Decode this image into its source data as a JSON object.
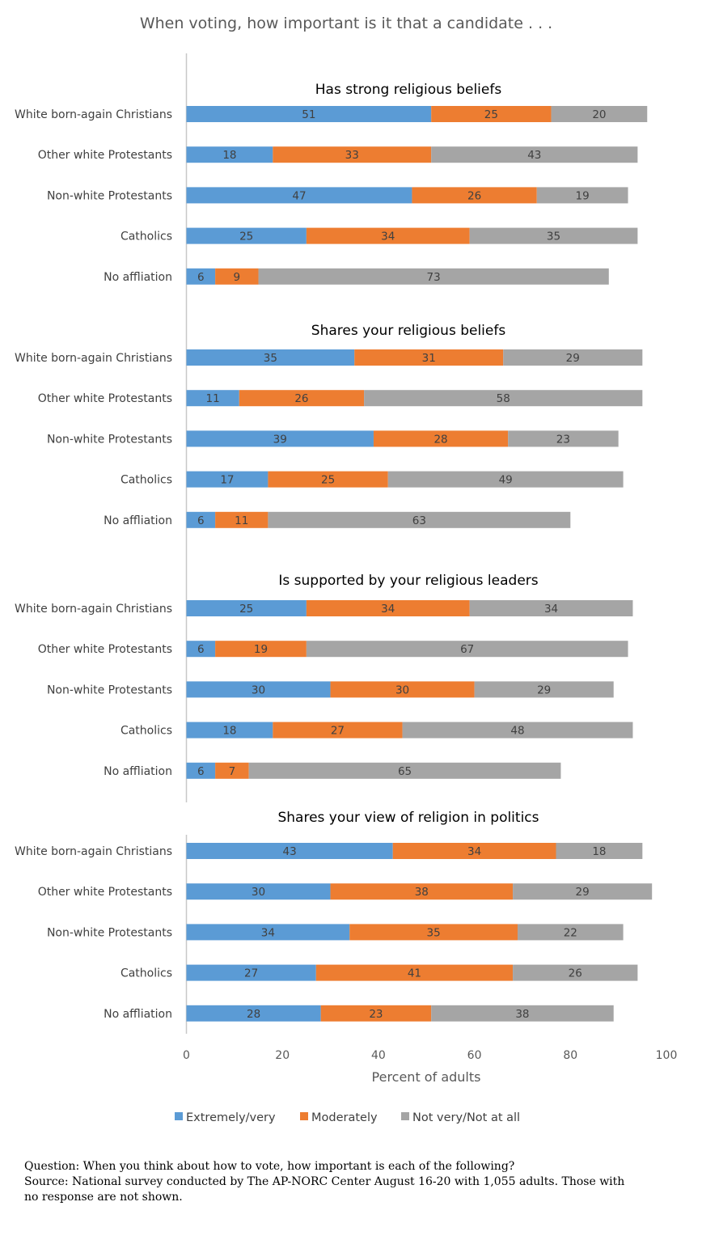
{
  "chart_data": {
    "type": "bar",
    "orientation": "horizontal",
    "stacked": true,
    "title": "When voting, how important is it that a candidate . . .",
    "xlabel": "Percent of adults",
    "xlim": [
      0,
      100
    ],
    "xticks": [
      0,
      20,
      40,
      60,
      80,
      100
    ],
    "grid": false,
    "legend_position": "bottom",
    "series": [
      {
        "name": "Extremely/very",
        "color": "#5b9bd5"
      },
      {
        "name": "Moderately",
        "color": "#ed7d31"
      },
      {
        "name": "Not very/Not at all",
        "color": "#a5a5a5"
      }
    ],
    "panels": [
      {
        "title": "Has strong religious beliefs",
        "categories": [
          "White born-again Christians",
          "Other white Protestants",
          "Non-white Protestants",
          "Catholics",
          "No affliation"
        ],
        "values": [
          [
            51,
            25,
            20
          ],
          [
            18,
            33,
            43
          ],
          [
            47,
            26,
            19
          ],
          [
            25,
            34,
            35
          ],
          [
            6,
            9,
            73
          ]
        ]
      },
      {
        "title": "Shares your religious beliefs",
        "categories": [
          "White born-again Christians",
          "Other white Protestants",
          "Non-white Protestants",
          "Catholics",
          "No affliation"
        ],
        "values": [
          [
            35,
            31,
            29
          ],
          [
            11,
            26,
            58
          ],
          [
            39,
            28,
            23
          ],
          [
            17,
            25,
            49
          ],
          [
            6,
            11,
            63
          ]
        ]
      },
      {
        "title": "Is supported by your religious leaders",
        "categories": [
          "White born-again Christians",
          "Other white Protestants",
          "Non-white Protestants",
          "Catholics",
          "No affliation"
        ],
        "values": [
          [
            25,
            34,
            34
          ],
          [
            6,
            19,
            67
          ],
          [
            30,
            30,
            29
          ],
          [
            18,
            27,
            48
          ],
          [
            6,
            7,
            65
          ]
        ]
      },
      {
        "title": "Shares your view of religion in politics",
        "categories": [
          "White born-again Christians",
          "Other white Protestants",
          "Non-white Protestants",
          "Catholics",
          "No affliation"
        ],
        "values": [
          [
            43,
            34,
            18
          ],
          [
            30,
            38,
            29
          ],
          [
            34,
            35,
            22
          ],
          [
            27,
            41,
            26
          ],
          [
            28,
            23,
            38
          ]
        ]
      }
    ]
  },
  "footnote": {
    "question": "Question: When you think about how to vote, how important is each of the following?",
    "source_line1": "Source: National survey conducted by The AP-NORC Center August 16-20 with 1,055 adults. Those with",
    "source_line2": "no response are not shown."
  }
}
